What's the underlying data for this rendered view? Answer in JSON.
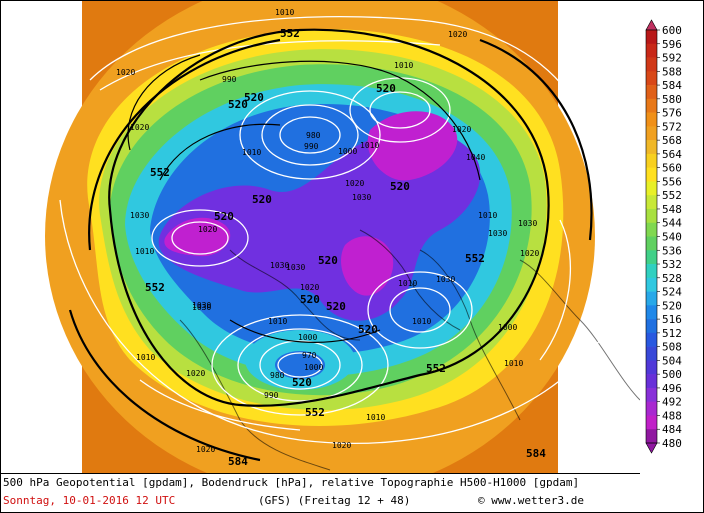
{
  "caption": {
    "line1": "500 hPa Geopotential [gpdam], Bodendruck [hPa], relative Topographie H500-H1000 [gpdam]",
    "date": "Sonntag, 10-01-2016  12 UTC",
    "model": "(GFS)  (Freitag 12 + 48)",
    "credit": "© www.wetter3.de"
  },
  "colors": {
    "date_text": "#d01010",
    "outer_orange": "#e07a10",
    "orange": "#f0a020",
    "yellow": "#ffe020",
    "light_green": "#b8e040",
    "green": "#60d060",
    "cyan": "#30c8e0",
    "blue": "#2070e0",
    "violet": "#7030e0",
    "magenta": "#c020d0"
  },
  "legend": {
    "levels": [
      "600",
      "596",
      "592",
      "588",
      "584",
      "580",
      "576",
      "572",
      "568",
      "564",
      "560",
      "556",
      "552",
      "548",
      "544",
      "540",
      "536",
      "532",
      "528",
      "524",
      "520",
      "516",
      "512",
      "508",
      "504",
      "500",
      "496",
      "492",
      "488",
      "484",
      "480"
    ],
    "colors": [
      "#c03060",
      "#b81818",
      "#c82818",
      "#d03818",
      "#d84818",
      "#e06018",
      "#e87818",
      "#f09018",
      "#f0a020",
      "#f0b828",
      "#f8d020",
      "#ffe020",
      "#e8f028",
      "#c8e838",
      "#a8e040",
      "#80d850",
      "#60d060",
      "#40d088",
      "#30d0c0",
      "#30c8e0",
      "#28a8e8",
      "#2088e8",
      "#2070e0",
      "#2858e0",
      "#3848d8",
      "#5038d8",
      "#6830d8",
      "#8830d8",
      "#a828d0",
      "#c020c8",
      "#9018a0"
    ]
  },
  "map": {
    "contour_labels": [
      "552",
      "552",
      "552",
      "552",
      "552",
      "552",
      "520",
      "520",
      "520",
      "520",
      "520",
      "520",
      "520",
      "520",
      "520",
      "520",
      "520",
      "584",
      "584"
    ],
    "pressure_labels": [
      "1010",
      "1020",
      "1020",
      "1020",
      "1020",
      "1030",
      "1020",
      "1010",
      "990",
      "980",
      "990",
      "1000",
      "1010",
      "1010",
      "1020",
      "1030",
      "1040",
      "1010",
      "1030",
      "1030",
      "1020",
      "1010",
      "1030",
      "1010",
      "1000",
      "990",
      "980",
      "970",
      "1000",
      "1020",
      "1010",
      "1030",
      "1010",
      "1020",
      "1010",
      "1000",
      "1010",
      "1020",
      "1030",
      "1030",
      "1020",
      "1010",
      "1030"
    ]
  }
}
